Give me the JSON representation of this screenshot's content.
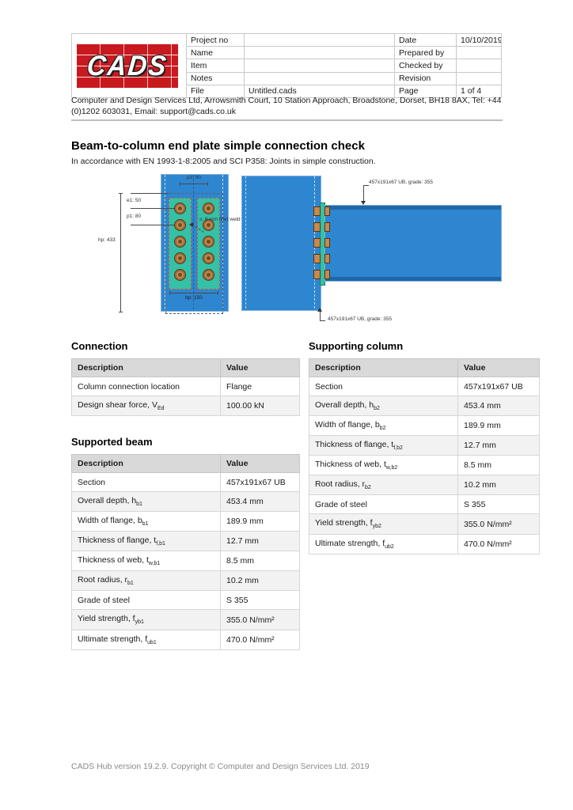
{
  "header": {
    "logo_text": "CADS",
    "rows": [
      {
        "l1": "Project no",
        "v1": "",
        "l2": "Date",
        "v2": "10/10/2019"
      },
      {
        "l1": "Name",
        "v1": "",
        "l2": "Prepared by",
        "v2": ""
      },
      {
        "l1": "Item",
        "v1": "",
        "l2": "Checked by",
        "v2": ""
      },
      {
        "l1": "Notes",
        "v1": "",
        "l2": "Revision",
        "v2": ""
      },
      {
        "l1": "File",
        "v1": "Untitled.cads",
        "l2": "Page",
        "v2": "1 of 4"
      }
    ],
    "address": "Computer and Design Services Ltd, Arrowsmith Court, 10 Station Approach, Broadstone, Dorset, BH18 8AX, Tel: +44 (0)1202 603031, Email: support@cads.co.uk"
  },
  "title": {
    "heading": "Beam-to-column end plate simple connection check",
    "subheading": "In accordance with EN 1993-1-8:2005 and SCI P358: Joints in simple construction."
  },
  "diagram": {
    "labels": {
      "p3": "p3: 90",
      "e1": "e1: 50",
      "p1": "p1: 80",
      "hp": "hp: 433",
      "bp": "bp: 150",
      "weld": "s: 6 mm fillet weld",
      "beam_annotation": "457x191x67 UB, grade: 355",
      "column_annotation": "457x191x67 UB, grade: 355"
    },
    "colors": {
      "steel_blue": "#2E86D0",
      "plate_teal": "#35C1A6",
      "bolt_tan": "#C6894F",
      "logo_red": "#C8191F"
    }
  },
  "tables": {
    "connection": {
      "title": "Connection",
      "headers": [
        "Description",
        "Value"
      ],
      "rows": [
        {
          "label": "Column connection location",
          "sub": "",
          "value": "Flange"
        },
        {
          "label": "Design shear force, V",
          "sub": "Ed",
          "value": "100.00 kN"
        }
      ]
    },
    "supported_beam": {
      "title": "Supported beam",
      "headers": [
        "Description",
        "Value"
      ],
      "rows": [
        {
          "label": "Section",
          "sub": "",
          "value": "457x191x67 UB"
        },
        {
          "label": "Overall depth, h",
          "sub": "b1",
          "value": "453.4 mm"
        },
        {
          "label": "Width of flange, b",
          "sub": "b1",
          "value": "189.9 mm"
        },
        {
          "label": "Thickness of flange, t",
          "sub": "f,b1",
          "value": "12.7 mm"
        },
        {
          "label": "Thickness of web, t",
          "sub": "w,b1",
          "value": "8.5 mm"
        },
        {
          "label": "Root radius, r",
          "sub": "b1",
          "value": "10.2 mm"
        },
        {
          "label": "Grade of steel",
          "sub": "",
          "value": "S 355"
        },
        {
          "label": "Yield strength, f",
          "sub": "yb1",
          "value": "355.0 N/mm²"
        },
        {
          "label": "Ultimate strength, f",
          "sub": "ub1",
          "value": "470.0 N/mm²"
        }
      ]
    },
    "supporting_column": {
      "title": "Supporting column",
      "headers": [
        "Description",
        "Value"
      ],
      "rows": [
        {
          "label": "Section",
          "sub": "",
          "value": "457x191x67 UB"
        },
        {
          "label": "Overall depth, h",
          "sub": "b2",
          "value": "453.4 mm"
        },
        {
          "label": "Width of flange, b",
          "sub": "b2",
          "value": "189.9 mm"
        },
        {
          "label": "Thickness of flange, t",
          "sub": "f,b2",
          "value": "12.7 mm"
        },
        {
          "label": "Thickness of web, t",
          "sub": "w,b2",
          "value": "8.5 mm"
        },
        {
          "label": "Root radius, r",
          "sub": "b2",
          "value": "10.2 mm"
        },
        {
          "label": "Grade of steel",
          "sub": "",
          "value": "S 355"
        },
        {
          "label": "Yield strength, f",
          "sub": "yb2",
          "value": "355.0 N/mm²"
        },
        {
          "label": "Ultimate strength, f",
          "sub": "ub2",
          "value": "470.0 N/mm²"
        }
      ]
    }
  },
  "footer": {
    "text": "CADS Hub version 19.2.9. Copyright © Computer and Design Services Ltd. 2019"
  }
}
